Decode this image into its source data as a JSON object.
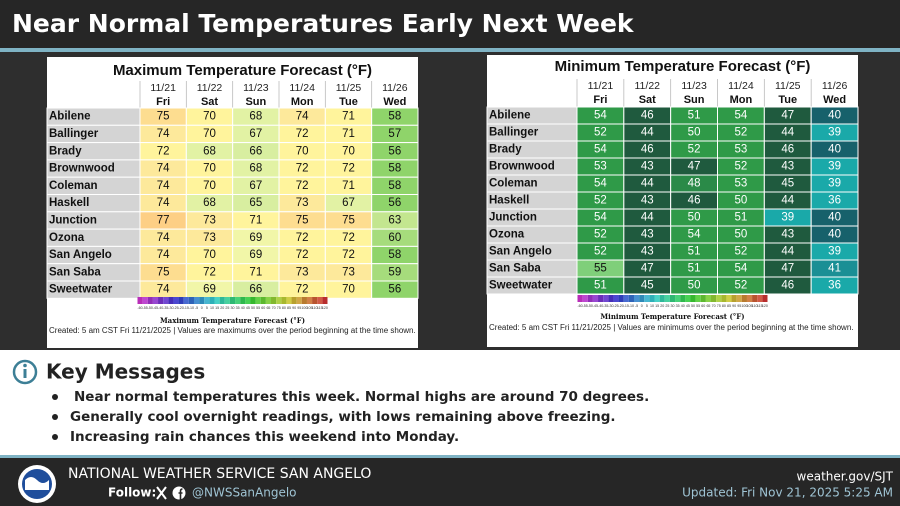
{
  "header": {
    "title": "Near Normal Temperatures Early Next Week"
  },
  "max_table": {
    "title": "Maximum Temperature Forecast (°F)",
    "dates": [
      "11/21",
      "11/22",
      "11/23",
      "11/24",
      "11/25",
      "11/26"
    ],
    "days": [
      "Fri",
      "Sat",
      "Sun",
      "Mon",
      "Tue",
      "Wed"
    ],
    "rows": [
      {
        "city": "Abilene",
        "values": [
          75,
          70,
          68,
          74,
          71,
          58
        ]
      },
      {
        "city": "Ballinger",
        "values": [
          74,
          70,
          67,
          72,
          71,
          57
        ]
      },
      {
        "city": "Brady",
        "values": [
          72,
          68,
          66,
          70,
          70,
          56
        ]
      },
      {
        "city": "Brownwood",
        "values": [
          74,
          70,
          68,
          72,
          72,
          58
        ]
      },
      {
        "city": "Coleman",
        "values": [
          74,
          70,
          67,
          72,
          71,
          58
        ]
      },
      {
        "city": "Haskell",
        "values": [
          74,
          68,
          65,
          73,
          67,
          56
        ]
      },
      {
        "city": "Junction",
        "values": [
          77,
          73,
          71,
          75,
          75,
          63
        ]
      },
      {
        "city": "Ozona",
        "values": [
          74,
          73,
          69,
          72,
          72,
          60
        ]
      },
      {
        "city": "San Angelo",
        "values": [
          74,
          70,
          69,
          72,
          72,
          58
        ]
      },
      {
        "city": "San Saba",
        "values": [
          75,
          72,
          71,
          73,
          73,
          59
        ]
      },
      {
        "city": "Sweetwater",
        "values": [
          74,
          69,
          66,
          72,
          70,
          56
        ]
      }
    ],
    "scale": [
      -60,
      -55,
      -50,
      -45,
      -40,
      -35,
      -30,
      -25,
      -20,
      -15,
      -10,
      -5,
      0,
      5,
      10,
      15,
      20,
      25,
      30,
      35,
      40,
      45,
      50,
      55,
      60,
      65,
      70,
      75,
      80,
      85,
      90,
      95,
      100,
      105,
      110,
      115,
      120
    ],
    "scale_caption": "Maximum Temperature Forecast (°F)",
    "note": "Created: 5 am CST Fri 11/21/2025  |  Values are maximums over the period beginning at the time shown."
  },
  "min_table": {
    "title": "Minimum Temperature Forecast (°F)",
    "dates": [
      "11/21",
      "11/22",
      "11/23",
      "11/24",
      "11/25",
      "11/26"
    ],
    "days": [
      "Fri",
      "Sat",
      "Sun",
      "Mon",
      "Tue",
      "Wed"
    ],
    "rows": [
      {
        "city": "Abilene",
        "values": [
          54,
          46,
          51,
          54,
          47,
          40
        ]
      },
      {
        "city": "Ballinger",
        "values": [
          52,
          44,
          50,
          52,
          44,
          39
        ]
      },
      {
        "city": "Brady",
        "values": [
          54,
          46,
          52,
          53,
          46,
          40
        ]
      },
      {
        "city": "Brownwood",
        "values": [
          53,
          43,
          47,
          52,
          43,
          39
        ]
      },
      {
        "city": "Coleman",
        "values": [
          54,
          44,
          48,
          53,
          45,
          39
        ]
      },
      {
        "city": "Haskell",
        "values": [
          52,
          43,
          46,
          50,
          44,
          36
        ]
      },
      {
        "city": "Junction",
        "values": [
          54,
          44,
          50,
          51,
          39,
          40
        ]
      },
      {
        "city": "Ozona",
        "values": [
          52,
          43,
          54,
          50,
          43,
          40
        ]
      },
      {
        "city": "San Angelo",
        "values": [
          52,
          43,
          51,
          52,
          44,
          39
        ]
      },
      {
        "city": "San Saba",
        "values": [
          55,
          47,
          51,
          54,
          47,
          41
        ]
      },
      {
        "city": "Sweetwater",
        "values": [
          51,
          45,
          50,
          52,
          46,
          36
        ]
      }
    ],
    "scale": [
      -60,
      -55,
      -50,
      -45,
      -40,
      -35,
      -30,
      -25,
      -20,
      -15,
      -10,
      -5,
      0,
      5,
      10,
      15,
      20,
      25,
      30,
      35,
      40,
      45,
      50,
      55,
      60,
      65,
      70,
      75,
      80,
      85,
      90,
      95,
      100,
      105,
      110,
      115,
      120
    ],
    "scale_caption": "Minimum Temperature Forecast (°F)",
    "note": "Created: 5 am CST Fri 11/21/2025  |  Values are minimums over the period beginning at the time shown."
  },
  "key_messages": {
    "title": "Key Messages",
    "items": [
      "Near normal temperatures this week. Normal highs are around 70 degrees.",
      "Generally cool overnight readings, with lows remaining above freezing.",
      "Increasing rain chances this weekend into Monday."
    ]
  },
  "footer": {
    "office": "NATIONAL WEATHER SERVICE SAN ANGELO",
    "follow": "Follow:",
    "handle": "@NWSSanAngelo",
    "website": "weather.gov/SJT",
    "updated": "Updated: Fri Nov 21, 2025 5:25 AM"
  }
}
